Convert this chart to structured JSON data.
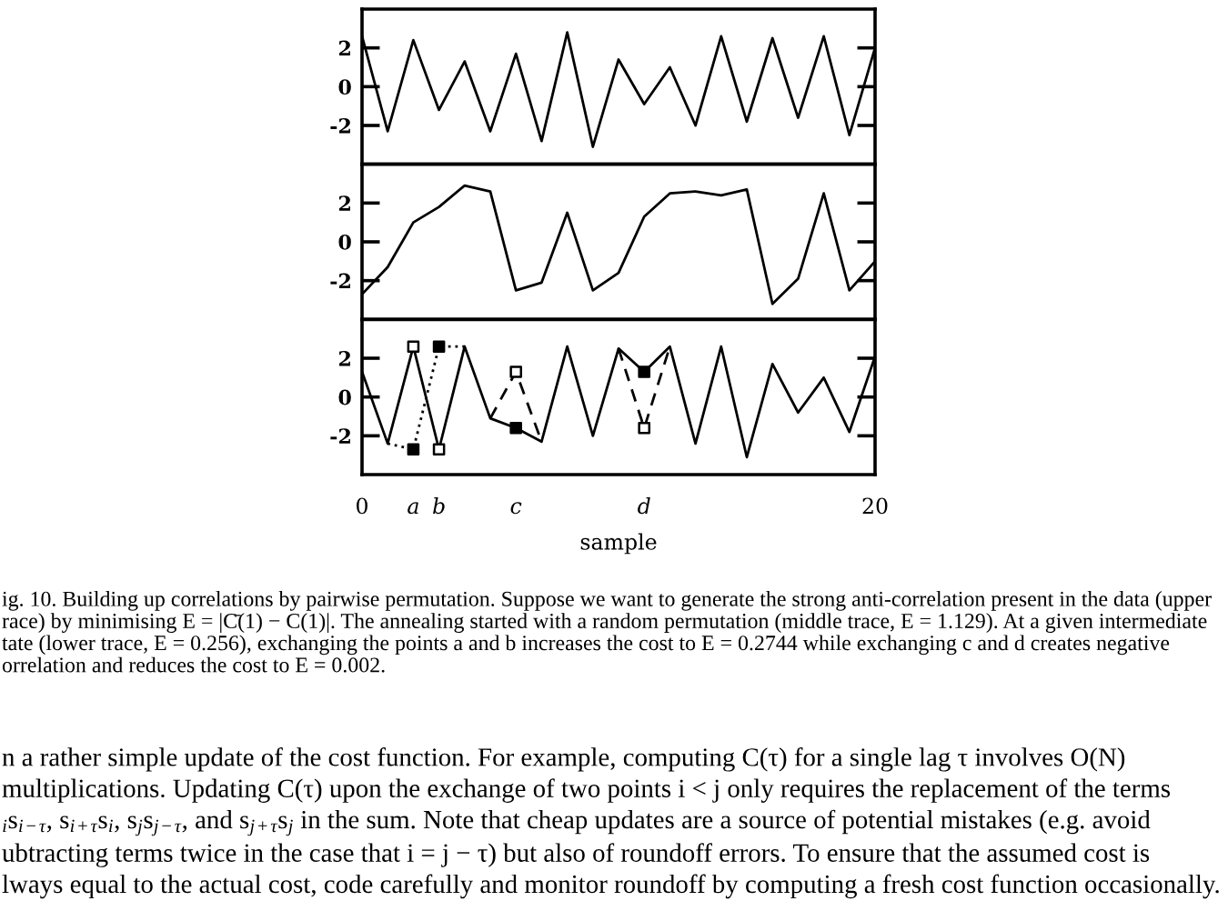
{
  "chart_data": [
    {
      "type": "line",
      "x": [
        0,
        1,
        2,
        3,
        4,
        5,
        6,
        7,
        8,
        9,
        10,
        11,
        12,
        13,
        14,
        15,
        16,
        17,
        18,
        19,
        20
      ],
      "series": [
        {
          "color": "#000000",
          "values": [
            2.6,
            -2.3,
            2.4,
            -1.2,
            1.3,
            -2.3,
            1.7,
            -2.8,
            2.8,
            -3.1,
            1.4,
            -0.9,
            1.0,
            -2.0,
            2.6,
            -1.8,
            2.5,
            -1.6,
            2.6,
            -2.5,
            2.0
          ]
        }
      ],
      "xlim": [
        0,
        20
      ],
      "ylim": [
        -4,
        4
      ],
      "yticks": [
        -2,
        0,
        2
      ],
      "tick_labels": "y"
    },
    {
      "type": "line",
      "x": [
        0,
        1,
        2,
        3,
        4,
        5,
        6,
        7,
        8,
        9,
        10,
        11,
        12,
        13,
        14,
        15,
        16,
        17,
        18,
        19,
        20
      ],
      "series": [
        {
          "color": "#000000",
          "values": [
            -2.7,
            -1.3,
            1.0,
            1.8,
            2.9,
            2.6,
            -2.5,
            -2.1,
            1.5,
            -2.5,
            -1.6,
            1.3,
            2.5,
            2.6,
            2.4,
            2.7,
            -3.2,
            -1.9,
            2.5,
            -2.5,
            -1.0
          ]
        }
      ],
      "xlim": [
        0,
        20
      ],
      "ylim": [
        -4,
        4
      ],
      "yticks": [
        -2,
        0,
        2
      ],
      "tick_labels": "y"
    },
    {
      "type": "line",
      "x": [
        0,
        1,
        2,
        3,
        4,
        5,
        6,
        7,
        8,
        9,
        10,
        11,
        12,
        13,
        14,
        15,
        16,
        17,
        18,
        19,
        20
      ],
      "series": [
        {
          "color": "#000000",
          "values": [
            1.3,
            -2.4,
            2.6,
            -2.7,
            2.6,
            -1.1,
            -1.6,
            -2.3,
            2.6,
            -2.0,
            2.5,
            1.3,
            2.6,
            -2.4,
            2.6,
            -3.1,
            1.7,
            -0.8,
            1.0,
            -1.8,
            2.1
          ]
        },
        {
          "color": "#000000",
          "line_style": "dotted",
          "x": [
            1,
            2,
            3,
            4
          ],
          "values": [
            -2.4,
            -2.7,
            2.6,
            2.6
          ]
        },
        {
          "color": "#000000",
          "line_style": "dashed",
          "x": [
            5,
            6,
            7
          ],
          "values": [
            -1.1,
            1.3,
            -2.3
          ]
        },
        {
          "color": "#000000",
          "line_style": "dashed",
          "x": [
            10,
            11,
            12
          ],
          "values": [
            2.5,
            -1.6,
            2.6
          ]
        },
        {
          "type": "scatter",
          "marker": "square",
          "color": "#000000",
          "x": [
            2,
            3,
            6,
            11
          ],
          "values": [
            -2.7,
            2.6,
            -1.6,
            1.3
          ]
        },
        {
          "type": "scatter",
          "marker": "square",
          "color": "#ffffff",
          "x": [
            2,
            3,
            6,
            11
          ],
          "values": [
            2.6,
            -2.7,
            1.3,
            -1.6
          ]
        }
      ],
      "xlim": [
        0,
        20
      ],
      "xticks": [
        0,
        {
          "value": 2,
          "label": "a"
        },
        {
          "value": 3,
          "label": "b"
        },
        {
          "value": 6,
          "label": "c"
        },
        {
          "value": 11,
          "label": "d"
        },
        20
      ],
      "ylim": [
        -4,
        4
      ],
      "yticks": [
        -2,
        0,
        2
      ],
      "xlabel": "sample",
      "annotations": [
        "ig. 10. Building up correlations by pairwise permutation. Suppose we want to generate the strong anti-correlation present in the data (upper\nrace) by minimising E = |C̄(1) − C(1)|. The annealing started with a random permutation (middle trace, E = 1.129). At a given intermediate\ntate (lower trace, E = 0.256), exchanging the points a and b increases the cost to E = 0.2744 while exchanging c and d creates negative\norrelation and reduces the cost to E = 0.002.",
        "n a rather simple update of the cost function. For example, computing C(τ) for a single lag τ involves O(N)\nmultiplications. Updating C(τ) upon the exchange of two points i < j only requires the replacement of the terms\n$_{i}$s$_{i−τ}$, s$_{i+τ}$s$_{i}$, s$_{j}$s$_{j−τ}$, and s$_{j+τ}$s$_{j}$ in the sum. Note that cheap updates are a source of potential mistakes (e.g. avoid\nubtracting terms twice in the case that i = j − τ) but also of roundoff errors. To ensure that the assumed cost is\nlways equal to the actual cost, code carefully and monitor roundoff by computing a fresh cost function occasionally."
      ]
    }
  ]
}
